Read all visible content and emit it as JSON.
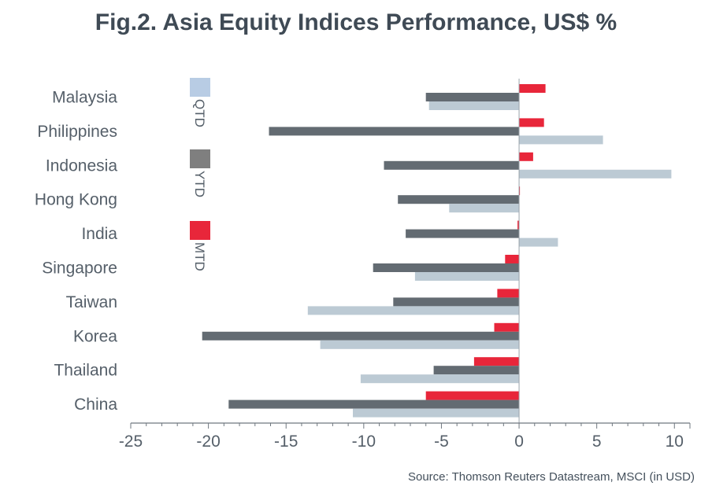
{
  "chart_data": {
    "type": "bar",
    "orientation": "horizontal",
    "title": "Fig.2. Asia Equity Indices Performance, US$ %",
    "source": "Source: Thomson Reuters Datastream, MSCI (in USD)",
    "categories": [
      "Malaysia",
      "Philippines",
      "Indonesia",
      "Hong Kong",
      "India",
      "Singapore",
      "Taiwan",
      "Korea",
      "Thailand",
      "China"
    ],
    "series": [
      {
        "name": "MTD",
        "color": "#e8263a",
        "values": [
          1.7,
          1.6,
          0.9,
          0.05,
          -0.1,
          -0.9,
          -1.4,
          -1.6,
          -2.9,
          -6.0
        ]
      },
      {
        "name": "YTD",
        "color": "#636b72",
        "values": [
          -6.0,
          -16.1,
          -8.7,
          -7.8,
          -7.3,
          -9.4,
          -8.1,
          -20.4,
          -5.5,
          -18.7
        ]
      },
      {
        "name": "QTD",
        "color": "#bccad4",
        "values": [
          -5.8,
          5.4,
          9.8,
          -4.5,
          2.5,
          -6.7,
          -13.6,
          -12.8,
          -10.2,
          -10.7
        ]
      }
    ],
    "legend_order": [
      "QTD",
      "YTD",
      "MTD"
    ],
    "legend_colors": {
      "QTD": "#b8cce4",
      "YTD": "#7f7f7f",
      "MTD": "#e8263a"
    },
    "xlim": [
      -25,
      11
    ],
    "xticks": [
      -25,
      -20,
      -15,
      -10,
      -5,
      0,
      5,
      10
    ],
    "xtick_labels": [
      "-25",
      "-20",
      "-15",
      "-10",
      "-5",
      "0",
      "5",
      "10"
    ],
    "legend_position": "left"
  }
}
